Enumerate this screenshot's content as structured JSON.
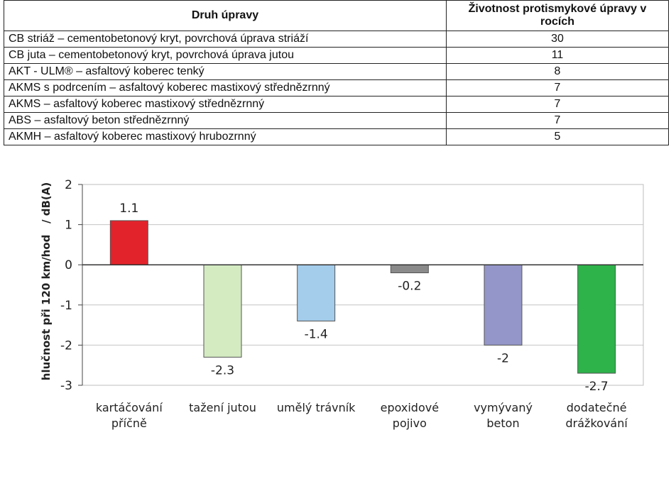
{
  "table": {
    "headers": [
      "Druh úpravy",
      "Životnost protismykové úpravy v rocích"
    ],
    "rows": [
      {
        "name": "CB striáž – cementobetonový kryt, povrchová úprava striáží",
        "years": "30"
      },
      {
        "name": "CB juta – cementobetonový kryt, povrchová úprava jutou",
        "years": "11"
      },
      {
        "name": "AKT - ULM® – asfaltový koberec tenký",
        "years": "8"
      },
      {
        "name": "AKMS s podrcením – asfaltový koberec mastixový střednězrnný",
        "years": "7"
      },
      {
        "name": "AKMS – asfaltový koberec mastixový střednězrnný",
        "years": "7"
      },
      {
        "name": "ABS – asfaltový beton střednězrnný",
        "years": "7"
      },
      {
        "name": "AKMH – asfaltový koberec mastixový hrubozrnný",
        "years": "5"
      }
    ]
  },
  "chart_data": {
    "type": "bar",
    "ylabel": "hlučnost při 120 km/hod   / dB(A)",
    "xlabel": "",
    "ylim": [
      -3,
      2
    ],
    "yticks": [
      2,
      1,
      0,
      -1,
      -2,
      -3
    ],
    "grid": true,
    "categories": [
      [
        "kartáčování",
        "příčně"
      ],
      [
        "tažení jutou"
      ],
      [
        "umělý trávník"
      ],
      [
        "epoxidové",
        "pojivo"
      ],
      [
        "vymývaný",
        "beton"
      ],
      [
        "dodatečné",
        "drážkování"
      ]
    ],
    "values": [
      1.1,
      -2.3,
      -1.4,
      -0.2,
      -2,
      -2.7
    ],
    "value_labels": [
      "1.1",
      "-2.3",
      "-1.4",
      "-0.2",
      "-2",
      "-2.7"
    ],
    "colors": [
      "#e3232b",
      "#d4ebc2",
      "#a4cceb",
      "#8a8a8a",
      "#9496c9",
      "#2eb24a"
    ]
  }
}
